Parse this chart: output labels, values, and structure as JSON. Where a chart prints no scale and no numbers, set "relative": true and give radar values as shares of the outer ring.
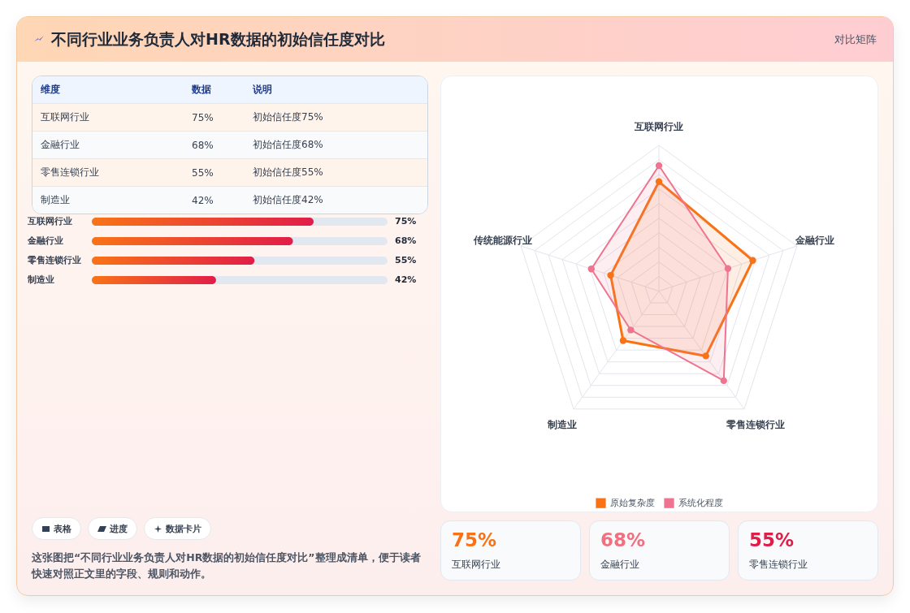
{
  "chart_data": [
    {
      "type": "other",
      "title": "不同行业业务负责人对HR数据的初始信任度对比",
      "subtitle": "对比矩阵",
      "annotations": [
        "表格",
        "进度",
        "数据卡片",
        "这张图把“不同行业业务负责人对HR数据的初始信任度对比”整理成清单，便于读者快速对照正文里的字段、规则和动作。"
      ]
    },
    {
      "type": "other",
      "annotations": [
        "维度",
        "数据",
        "说明",
        "互联网行业",
        "75%",
        "初始信任度75%",
        "金融行业",
        "68%",
        "初始信任度68%",
        "零售连锁行业",
        "55%",
        "初始信任度55%",
        "制造业",
        "42%",
        "初始信任度42%"
      ]
    },
    {
      "type": "bar",
      "orientation": "horizontal",
      "categories": [
        "互联网行业",
        "金融行业",
        "零售连锁行业",
        "制造业"
      ],
      "values": [
        75,
        68,
        55,
        42
      ],
      "value_labels": [
        "75%",
        "68%",
        "55%",
        "42%"
      ],
      "color": "#e11d48",
      "xlim": [
        0,
        100
      ],
      "tick_labels": "y"
    },
    {
      "type": "radar",
      "relative": true,
      "categories": [
        "互联网行业",
        "金融行业",
        "零售连锁行业",
        "制造业",
        "传统能源行业"
      ],
      "legend": "bottom",
      "marker": "circle",
      "series": [
        {
          "name": "原始复杂度",
          "color": "#f97316",
          "values": [
            0.75,
            0.68,
            0.55,
            0.42,
            0.35
          ]
        },
        {
          "name": "系统化程度",
          "color": "#ee7490",
          "values": [
            0.86,
            0.5,
            0.76,
            0.33,
            0.49
          ]
        }
      ]
    },
    {
      "type": "other",
      "annotations": [
        "75%",
        "互联网行业",
        "68%",
        "金融行业",
        "55%",
        "零售连锁行业"
      ],
      "colors": [
        "#f97316",
        "#f07080",
        "#e11d48"
      ]
    }
  ]
}
